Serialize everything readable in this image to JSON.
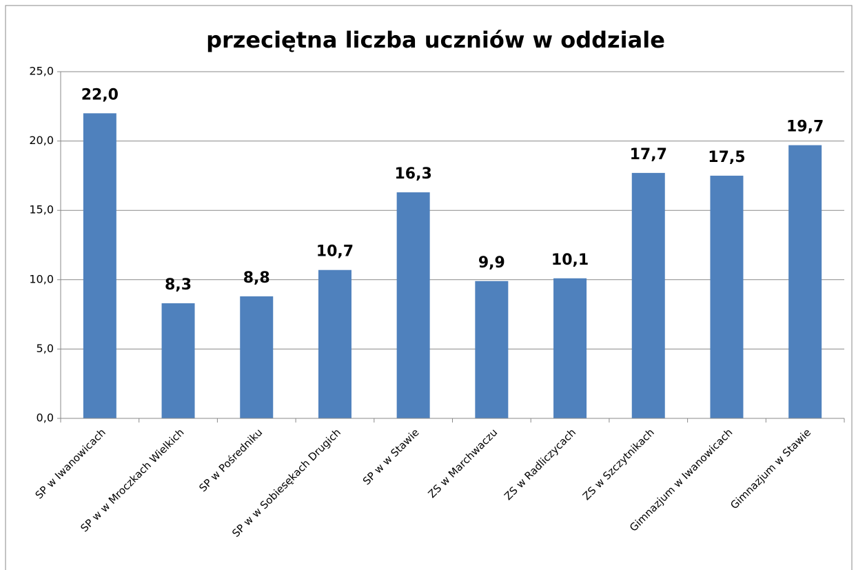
{
  "chart_data": {
    "type": "bar",
    "title": "przeciętna liczba uczniów w oddziale",
    "categories": [
      "SP w Iwanowicach",
      "SP w w Mroczkach Wielkich",
      "SP w Pośredniku",
      "SP w w Sobiesękach Drugich",
      "SP w w Stawie",
      "ZS w Marchwaczu",
      "ZS w Radliczycach",
      "ZS w Szczytnikach",
      "Gimnazjum w Iwanowicach",
      "Gimnazjum w Stawie"
    ],
    "values": [
      22.0,
      8.3,
      8.8,
      10.7,
      16.3,
      9.9,
      10.1,
      17.7,
      17.5,
      19.7
    ],
    "value_labels": [
      "22,0",
      "8,3",
      "8,8",
      "10,7",
      "16,3",
      "9,9",
      "10,1",
      "17,7",
      "17,5",
      "19,7"
    ],
    "color": "#4f81bd",
    "value_label_color": "#ff0000",
    "ylim": [
      0,
      25
    ],
    "yticks": [
      {
        "value": 0,
        "label": "0,0"
      },
      {
        "value": 5,
        "label": "5,0"
      },
      {
        "value": 10,
        "label": "10,0"
      },
      {
        "value": 15,
        "label": "15,0"
      },
      {
        "value": 20,
        "label": "20,0"
      },
      {
        "value": 25,
        "label": "25,0"
      }
    ],
    "grid": true
  }
}
